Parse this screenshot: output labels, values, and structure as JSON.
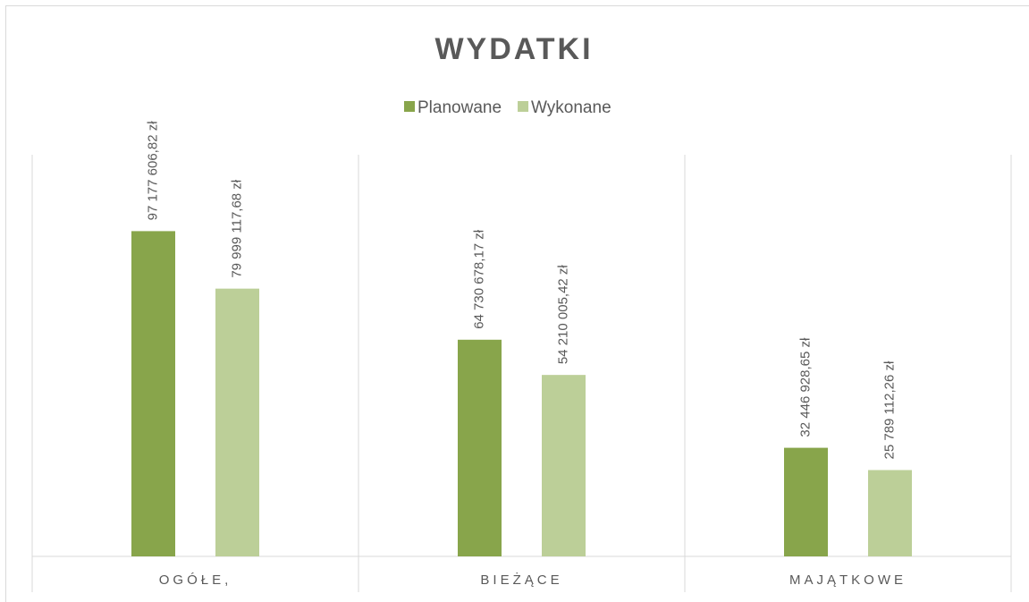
{
  "chart_data": {
    "type": "bar",
    "title": "WYDATKI",
    "categories": [
      "OGÓŁE,",
      "BIEŻĄCE",
      "MAJĄTKOWE"
    ],
    "series": [
      {
        "name": "Planowane",
        "color": "#88a54b",
        "values": [
          97177606.82,
          64730678.17,
          32446928.65
        ],
        "value_labels": [
          "97 177 606,82 zł",
          "64 730 678,17 zł",
          "32 446 928,65 zł"
        ]
      },
      {
        "name": "Wykonane",
        "color": "#bccf98",
        "values": [
          79999117.68,
          54210005.42,
          25789112.26
        ],
        "value_labels": [
          "79 999 117,68 zł",
          "54 210 005,42 zł",
          "25 789 112,26 zł"
        ]
      }
    ],
    "ylim": [
      0,
      120000000
    ],
    "legend": "top"
  }
}
